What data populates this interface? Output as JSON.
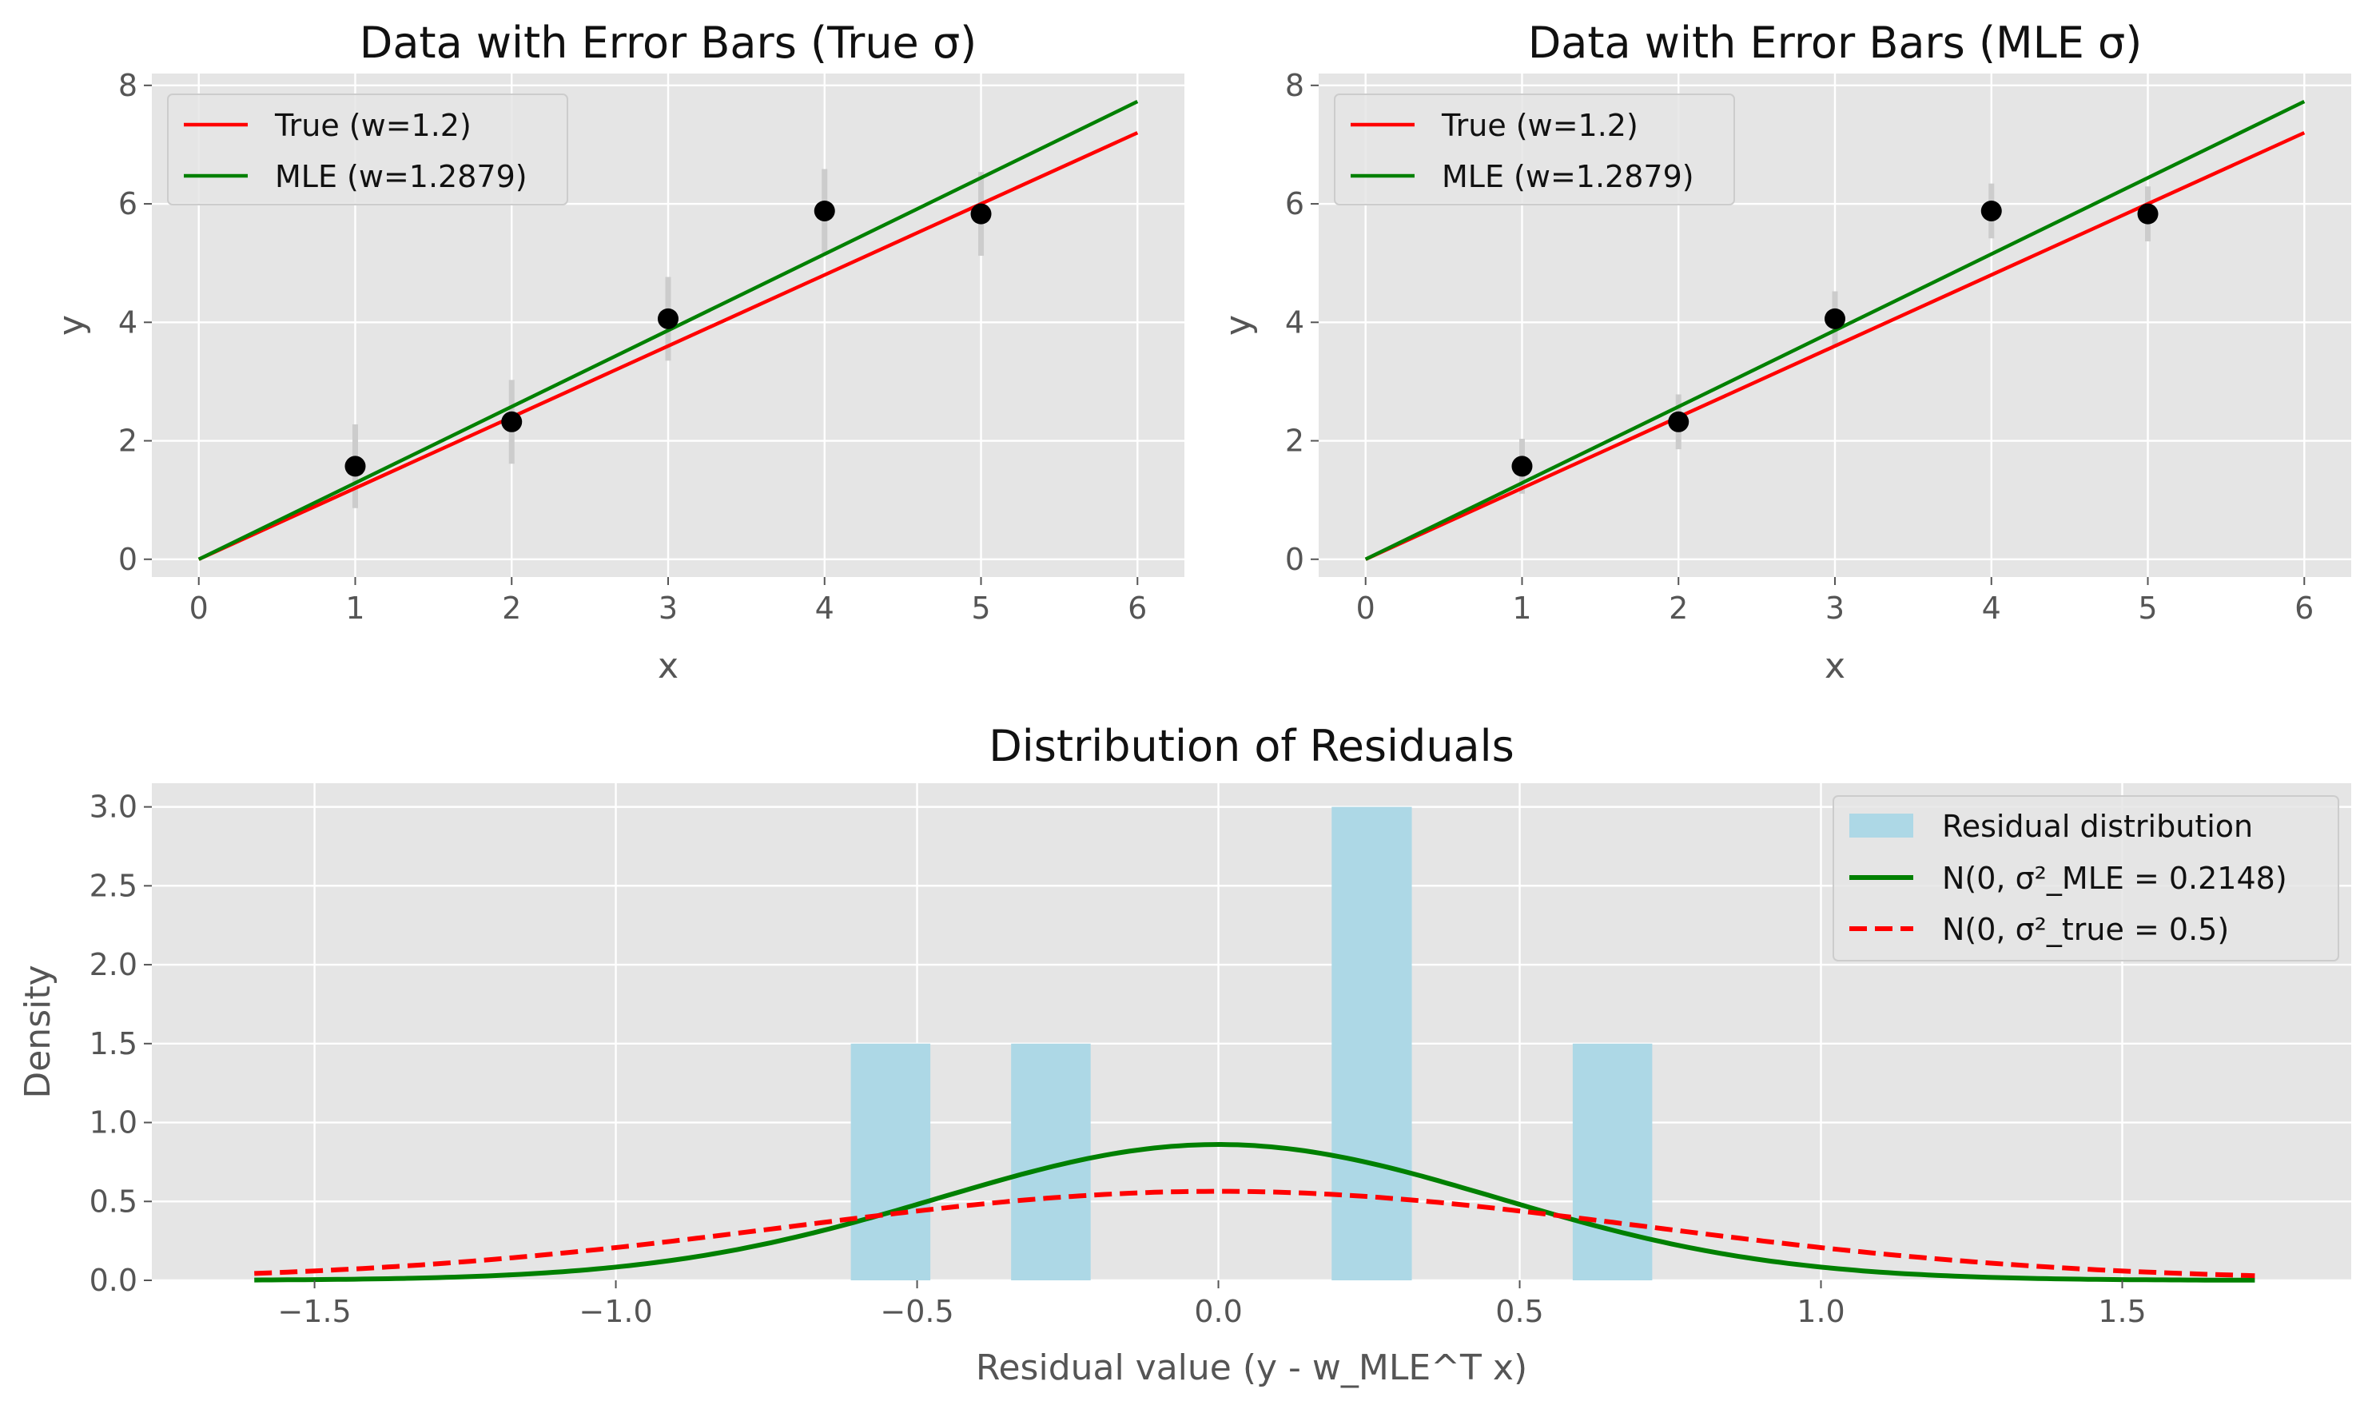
{
  "chart_data": [
    {
      "type": "scatter",
      "title": "Data with Error Bars (True σ)",
      "xlabel": "x",
      "ylabel": "y",
      "xlim": [
        -0.3,
        6.3
      ],
      "ylim": [
        -0.3,
        8.2
      ],
      "xticks": [
        0,
        1,
        2,
        3,
        4,
        5,
        6
      ],
      "xtick_labels": [
        "0",
        "1",
        "2",
        "3",
        "4",
        "5",
        "6"
      ],
      "yticks": [
        0,
        2,
        4,
        6,
        8
      ],
      "ytick_labels": [
        "0",
        "2",
        "4",
        "6",
        "8"
      ],
      "grid": true,
      "legend_position": "top-left",
      "points": {
        "x": [
          1,
          2,
          3,
          4,
          5
        ],
        "y": [
          1.57,
          2.32,
          4.06,
          5.88,
          5.83
        ],
        "yerr": [
          0.707,
          0.707,
          0.707,
          0.707,
          0.707
        ],
        "color": "#000000",
        "errcolor": "#cccccc"
      },
      "lines": [
        {
          "name": "True (w=1.2)",
          "color": "#ff0000",
          "x": [
            0,
            6
          ],
          "y": [
            0,
            7.2
          ]
        },
        {
          "name": "MLE (w=1.2879)",
          "color": "#008000",
          "x": [
            0,
            6
          ],
          "y": [
            0,
            7.7274
          ]
        }
      ]
    },
    {
      "type": "scatter",
      "title": "Data with Error Bars (MLE σ)",
      "xlabel": "x",
      "ylabel": "y",
      "xlim": [
        -0.3,
        6.3
      ],
      "ylim": [
        -0.3,
        8.2
      ],
      "xticks": [
        0,
        1,
        2,
        3,
        4,
        5,
        6
      ],
      "xtick_labels": [
        "0",
        "1",
        "2",
        "3",
        "4",
        "5",
        "6"
      ],
      "yticks": [
        0,
        2,
        4,
        6,
        8
      ],
      "ytick_labels": [
        "0",
        "2",
        "4",
        "6",
        "8"
      ],
      "grid": true,
      "legend_position": "top-left",
      "points": {
        "x": [
          1,
          2,
          3,
          4,
          5
        ],
        "y": [
          1.57,
          2.32,
          4.06,
          5.88,
          5.83
        ],
        "yerr": [
          0.4635,
          0.4635,
          0.4635,
          0.4635,
          0.4635
        ],
        "color": "#000000",
        "errcolor": "#cccccc"
      },
      "lines": [
        {
          "name": "True (w=1.2)",
          "color": "#ff0000",
          "x": [
            0,
            6
          ],
          "y": [
            0,
            7.2
          ]
        },
        {
          "name": "MLE (w=1.2879)",
          "color": "#008000",
          "x": [
            0,
            6
          ],
          "y": [
            0,
            7.7274
          ]
        }
      ]
    },
    {
      "type": "bar",
      "title": "Distribution of Residuals",
      "xlabel": "Residual value (y - w_MLE^T x)",
      "ylabel": "Density",
      "xlim": [
        -1.77,
        1.88
      ],
      "ylim": [
        0,
        3.15
      ],
      "xticks": [
        -1.5,
        -1.0,
        -0.5,
        0.0,
        0.5,
        1.0,
        1.5
      ],
      "xtick_labels": [
        "−1.5",
        "−1.0",
        "−0.5",
        "0.0",
        "0.5",
        "1.0",
        "1.5"
      ],
      "yticks": [
        0.0,
        0.5,
        1.0,
        1.5,
        2.0,
        2.5,
        3.0
      ],
      "ytick_labels": [
        "0.0",
        "0.5",
        "1.0",
        "1.5",
        "2.0",
        "2.5",
        "3.0"
      ],
      "grid": true,
      "legend_position": "top-right",
      "histogram": {
        "name": "Residual distribution",
        "color": "#add8e6",
        "bins": [
          {
            "x0": -0.61,
            "x1": -0.478,
            "value": 1.5
          },
          {
            "x0": -0.344,
            "x1": -0.212,
            "value": 1.5
          },
          {
            "x0": 0.188,
            "x1": 0.321,
            "value": 3.0
          },
          {
            "x0": 0.588,
            "x1": 0.72,
            "value": 1.5
          }
        ]
      },
      "curves": [
        {
          "name": "N(0, σ²_MLE = 0.2148)",
          "color": "#008000",
          "dashed": false,
          "mean": 0,
          "variance": 0.2148,
          "x_range": [
            -1.6,
            1.72
          ]
        },
        {
          "name": "N(0, σ²_true = 0.5)",
          "color": "#ff0000",
          "dashed": true,
          "mean": 0,
          "variance": 0.5,
          "x_range": [
            -1.6,
            1.72
          ]
        }
      ]
    }
  ]
}
